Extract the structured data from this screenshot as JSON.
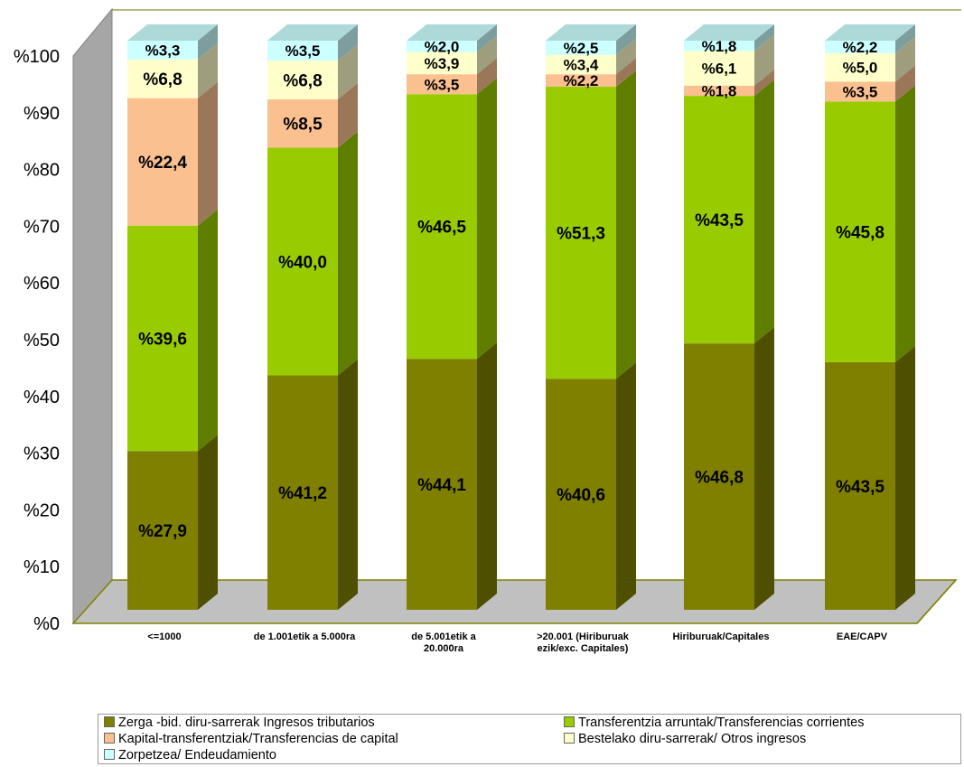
{
  "chart_data": {
    "type": "stacked-bar-3d",
    "title": "",
    "xlabel": "",
    "ylabel": "",
    "ylim": [
      0,
      100
    ],
    "y_ticks": [
      "%0",
      "%10",
      "%20",
      "%30",
      "%40",
      "%50",
      "%60",
      "%70",
      "%80",
      "%90",
      "%100"
    ],
    "categories": [
      [
        "<=1000"
      ],
      [
        "de 1.001etik a 5.000ra"
      ],
      [
        "de 5.001etik a",
        "20.000ra"
      ],
      [
        ">20.001 (Hiriburuak",
        "ezik/exc. Capitales)"
      ],
      [
        "Hiriburuak/Capitales"
      ],
      [
        "EAE/CAPV"
      ]
    ],
    "series": [
      {
        "name": "Zerga -bid. diru-sarrerak Ingresos tributarios",
        "color": "#7f7f00",
        "values": [
          27.9,
          41.2,
          44.1,
          40.6,
          46.8,
          43.5
        ],
        "labels": [
          "%27,9",
          "%41,2",
          "%44,1",
          "%40,6",
          "%46,8",
          "%43,5"
        ]
      },
      {
        "name": "Transferentzia arruntak/Transferencias corrientes",
        "color": "#99cc00",
        "values": [
          39.6,
          40.0,
          46.5,
          51.3,
          43.5,
          45.8
        ],
        "labels": [
          "%39,6",
          "%40,0",
          "%46,5",
          "%51,3",
          "%43,5",
          "%45,8"
        ]
      },
      {
        "name": "Kapital-transferentziak/Transferencias de capital",
        "color": "#fac090",
        "values": [
          22.4,
          8.5,
          3.5,
          2.2,
          1.8,
          3.5
        ],
        "labels": [
          "%22,4",
          "%8,5",
          "%3,5",
          "%2,2",
          "%1,8",
          "%3,5"
        ]
      },
      {
        "name": "Bestelako diru-sarrerak/ Otros ingresos",
        "color": "#ffffcc",
        "values": [
          6.8,
          6.8,
          3.9,
          3.4,
          6.1,
          5.0
        ],
        "labels": [
          "%6,8",
          "%6,8",
          "%3,9",
          "%3,4",
          "%6,1",
          "%5,0"
        ]
      },
      {
        "name": "Zorpetzea/ Endeudamiento",
        "color": "#ccffff",
        "values": [
          3.3,
          3.5,
          2.0,
          2.5,
          1.8,
          2.2
        ],
        "labels": [
          "%3,3",
          "%3,5",
          "%2,0",
          "%2,5",
          "%1,8",
          "%2,2"
        ]
      }
    ],
    "legend_position": "bottom",
    "grid": false
  }
}
